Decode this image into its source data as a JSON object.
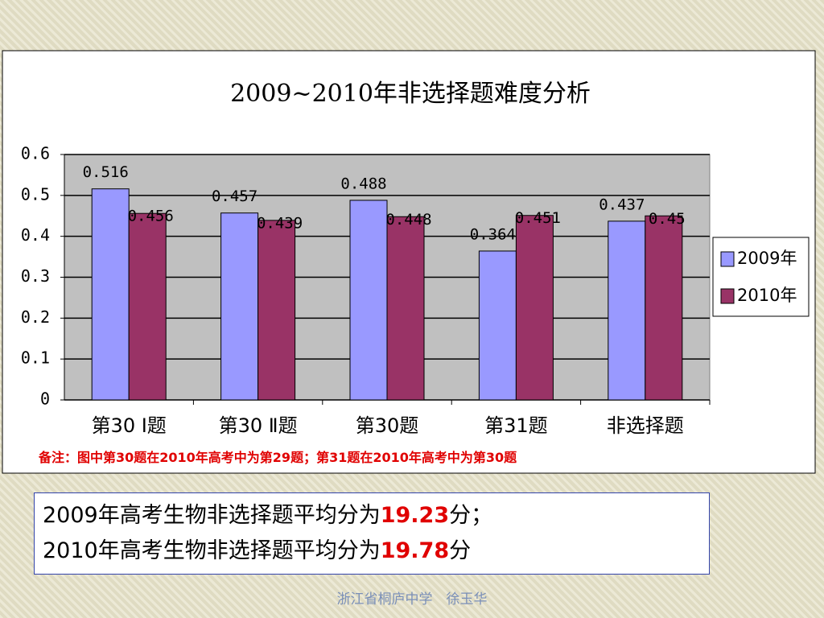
{
  "chart_data": {
    "type": "bar",
    "title": "2009~2010年非选择题难度分析",
    "categories": [
      "第30 Ⅰ题",
      "第30 Ⅱ题",
      "第30题",
      "第31题",
      "非选择题"
    ],
    "series": [
      {
        "name": "2009年",
        "color": "#9999ff",
        "values": [
          0.516,
          0.457,
          0.488,
          0.364,
          0.437
        ]
      },
      {
        "name": "2010年",
        "color": "#993366",
        "values": [
          0.456,
          0.439,
          0.448,
          0.451,
          0.45
        ]
      }
    ],
    "ylim": [
      0,
      0.6
    ],
    "yticks": [
      0,
      0.1,
      0.2,
      0.3,
      0.4,
      0.5,
      0.6
    ],
    "grid": true,
    "legend": "right"
  },
  "note": "备注：图中第30题在2010年高考中为第29题；第31题在2010年高考中为第30题",
  "summary": [
    {
      "text": "2009年高考生物非选择题平均分为",
      "score": 19.23,
      "suffix": "分；"
    },
    {
      "text": "2010年高考生物非选择题平均分为",
      "score": 19.78,
      "suffix": "分"
    }
  ],
  "footer": "浙江省桐庐中学　徐玉华"
}
